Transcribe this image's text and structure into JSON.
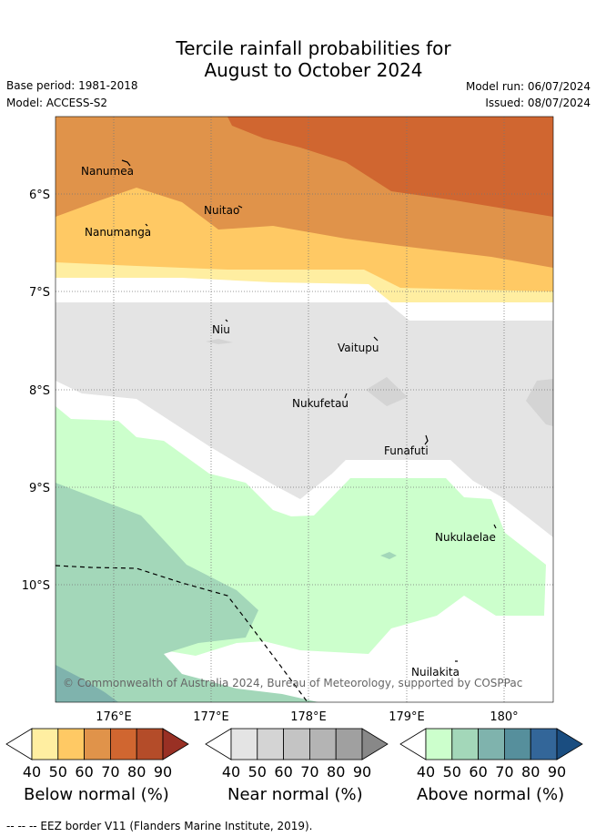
{
  "title_line1": "Tercile rainfall probabilities for",
  "title_line2": "August to October 2024",
  "meta": {
    "base_period": "Base period: 1981-2018",
    "model": "Model: ACCESS-S2",
    "model_run": "Model run: 06/07/2024",
    "issued": "Issued: 08/07/2024"
  },
  "axes": {
    "lat_labels": [
      "6°S",
      "7°S",
      "8°S",
      "9°S",
      "10°S"
    ],
    "lon_labels": [
      "176°E",
      "177°E",
      "178°E",
      "179°E",
      "180°"
    ]
  },
  "places": [
    "Nanumea",
    "Nuitao",
    "Nanumanga",
    "Niu",
    "Vaitupu",
    "Nukufetau",
    "Funafuti",
    "Nukulaelae",
    "Nuilakita"
  ],
  "copyright": "© Commonwealth of Australia 2024, Bureau of Meteorology, supported by COSPPac",
  "colorbars": {
    "ticks": [
      "40",
      "50",
      "60",
      "70",
      "80",
      "90"
    ],
    "below": {
      "title": "Below normal (%)",
      "colors": [
        "#ffffff",
        "#ffeea1",
        "#ffc964",
        "#e0934a",
        "#d06630",
        "#b44c29",
        "#993024"
      ]
    },
    "near": {
      "title": "Near normal (%)",
      "colors": [
        "#ffffff",
        "#e4e4e4",
        "#d4d4d4",
        "#c4c4c4",
        "#b4b4b4",
        "#a0a0a0",
        "#888888"
      ]
    },
    "above": {
      "title": "Above normal (%)",
      "colors": [
        "#ffffff",
        "#ccffcc",
        "#a3d7b9",
        "#7fb3ad",
        "#568f9c",
        "#336699",
        "#1a4d80"
      ]
    }
  },
  "legend": "-- -- -- EEZ border V11 (Flanders Marine Institute, 2019)."
}
